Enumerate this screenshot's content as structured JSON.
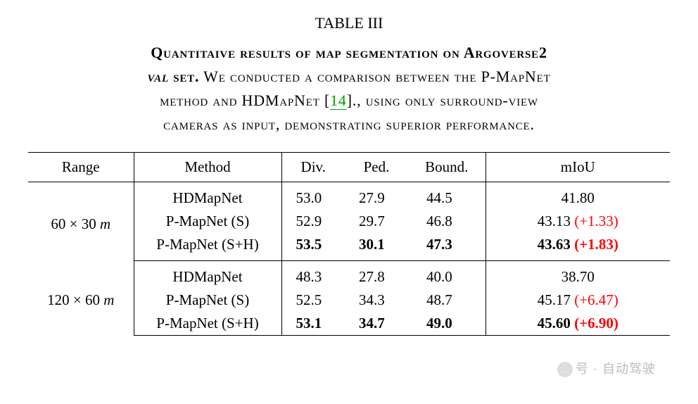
{
  "table_label": "TABLE III",
  "caption": {
    "line1_a": "Quantitaive results of map segmentation on Argoverse2",
    "line1_b": "val",
    "line1_c": " set.",
    "line2_a": " We conducted a comparison between the P-MapNet",
    "line3_a": "method and HDMapNet [",
    "cite": "14",
    "line3_b": "]., using only surround-view",
    "line4": "cameras as input, demonstrating superior performance."
  },
  "citation_color": "#00a000",
  "delta_color": "#ff0000",
  "columns": [
    "Range",
    "Method",
    "Div.",
    "Ped.",
    "Bound.",
    "mIoU"
  ],
  "groups": [
    {
      "range": "60 × 30 m",
      "rows": [
        {
          "method": "HDMapNet",
          "div": "53.0",
          "ped": "27.9",
          "bound": "44.5",
          "miou": "41.80",
          "delta": "",
          "bold": false
        },
        {
          "method": "P-MapNet (S)",
          "div": "52.9",
          "ped": "29.7",
          "bound": "46.8",
          "miou": "43.13",
          "delta": "(+1.33)",
          "bold": false
        },
        {
          "method": "P-MapNet (S+H)",
          "div": "53.5",
          "ped": "30.1",
          "bound": "47.3",
          "miou": "43.63",
          "delta": "(+1.83)",
          "bold": true
        }
      ]
    },
    {
      "range": "120 × 60 m",
      "rows": [
        {
          "method": "HDMapNet",
          "div": "48.3",
          "ped": "27.8",
          "bound": "40.0",
          "miou": "38.70",
          "delta": "",
          "bold": false
        },
        {
          "method": "P-MapNet (S)",
          "div": "52.5",
          "ped": "34.3",
          "bound": "48.7",
          "miou": "45.17",
          "delta": "(+6.47)",
          "bold": false
        },
        {
          "method": "P-MapNet (S+H)",
          "div": "53.1",
          "ped": "34.7",
          "bound": "49.0",
          "miou": "45.60",
          "delta": "(+6.90)",
          "bold": true
        }
      ]
    }
  ],
  "watermark": {
    "icon": "…",
    "text": "号 · 自动驾驶"
  }
}
